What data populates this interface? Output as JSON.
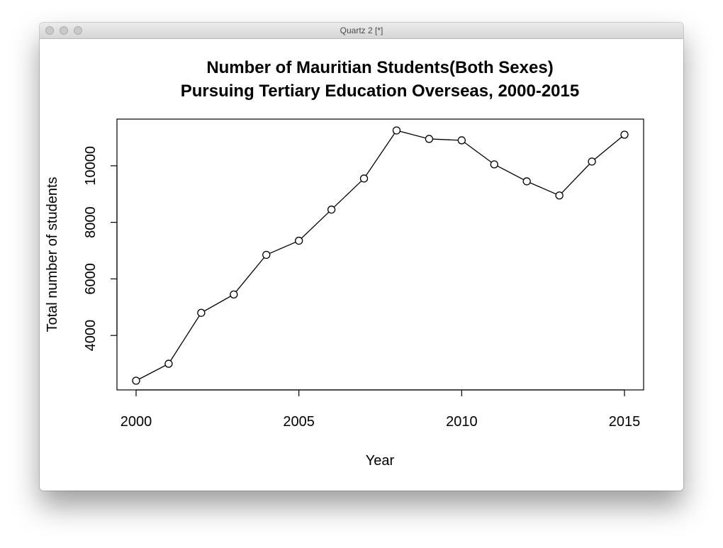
{
  "window": {
    "title": "Quartz 2 [*]"
  },
  "chart_data": {
    "type": "line",
    "title_line1": "Number of Mauritian Students(Both Sexes)",
    "title_line2": "Pursuing Tertiary Education Overseas, 2000-2015",
    "xlabel": "Year",
    "ylabel": "Total number of students",
    "xlim": [
      2000,
      2015
    ],
    "ylim": [
      2400,
      11300
    ],
    "x_ticks": [
      2000,
      2005,
      2010,
      2015
    ],
    "y_ticks": [
      4000,
      6000,
      8000,
      10000
    ],
    "grid": false,
    "legend": "none",
    "marker": "open-circle",
    "line_color": "#000000",
    "x": [
      2000,
      2001,
      2002,
      2003,
      2004,
      2005,
      2006,
      2007,
      2008,
      2009,
      2010,
      2011,
      2012,
      2013,
      2014,
      2015
    ],
    "y": [
      2400,
      3000,
      4800,
      5450,
      6850,
      7350,
      8450,
      9550,
      11250,
      10950,
      10900,
      10050,
      9450,
      8950,
      10150,
      11100
    ]
  }
}
